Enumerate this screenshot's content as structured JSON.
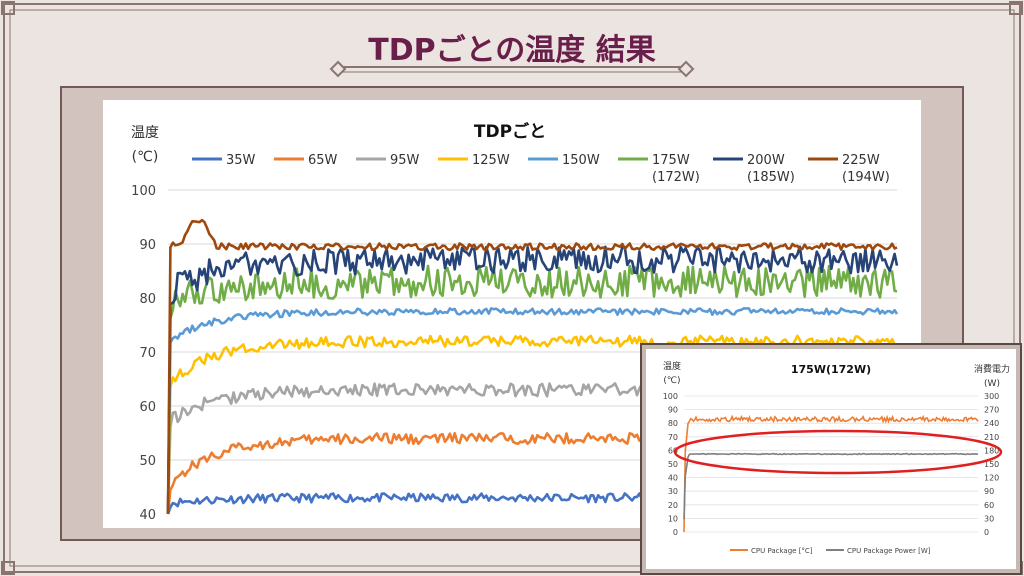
{
  "slide_title": "TDPごとの温度 結果",
  "colors": {
    "frame": "#8a7470",
    "title": "#6a1f4a",
    "ellipse": "#e02020"
  },
  "chart_data": [
    {
      "type": "line",
      "title": "TDPごと",
      "ylabel": "温度",
      "ylabel_unit": "(℃)",
      "ylim": [
        40,
        100
      ],
      "yticks": [
        40,
        50,
        60,
        70,
        80,
        90,
        100
      ],
      "grid": true,
      "legend_position": "top",
      "series": [
        {
          "name": "35W",
          "color": "#4472c4",
          "plateau": 43,
          "start": 42,
          "noise": 0.8
        },
        {
          "name": "65W",
          "color": "#ed7d31",
          "plateau": 54,
          "start": 45,
          "noise": 1.0
        },
        {
          "name": "95W",
          "color": "#a5a5a5",
          "plateau": 63,
          "start": 57,
          "noise": 1.2
        },
        {
          "name": "125W",
          "color": "#ffc000",
          "plateau": 72,
          "start": 64,
          "noise": 1.0
        },
        {
          "name": "150W",
          "color": "#5b9bd5",
          "plateau": 77.5,
          "start": 72,
          "noise": 0.6
        },
        {
          "name": "175W",
          "name2": "(172W)",
          "color": "#70ad47",
          "plateau": 83,
          "start": 79,
          "noise": 3.0
        },
        {
          "name": "200W",
          "name2": "(185W)",
          "color": "#264478",
          "plateau": 87,
          "start": 81,
          "noise": 2.5
        },
        {
          "name": "225W",
          "name2": "(194W)",
          "color": "#9e480e",
          "plateau": 89.5,
          "start": 90,
          "noise": 0.6,
          "peak": 94
        }
      ]
    },
    {
      "type": "line",
      "title": "175W(172W)",
      "ylabel": "温度",
      "ylabel_unit": "(℃)",
      "y2label": "消費電力",
      "y2label_unit": "(W)",
      "ylim": [
        0,
        100
      ],
      "yticks": [
        0,
        10,
        20,
        30,
        40,
        50,
        60,
        70,
        80,
        90,
        100
      ],
      "y2lim": [
        0,
        300
      ],
      "y2ticks": [
        0,
        30,
        60,
        90,
        120,
        150,
        180,
        210,
        240,
        270,
        300
      ],
      "grid": true,
      "legend_position": "bottom",
      "series": [
        {
          "name": "CPU Package [°C]",
          "color": "#ed7d31",
          "axis": "left",
          "plateau": 83
        },
        {
          "name": "CPU Package Power [W]",
          "color": "#7f7f7f",
          "axis": "right",
          "plateau": 172
        }
      ]
    }
  ]
}
